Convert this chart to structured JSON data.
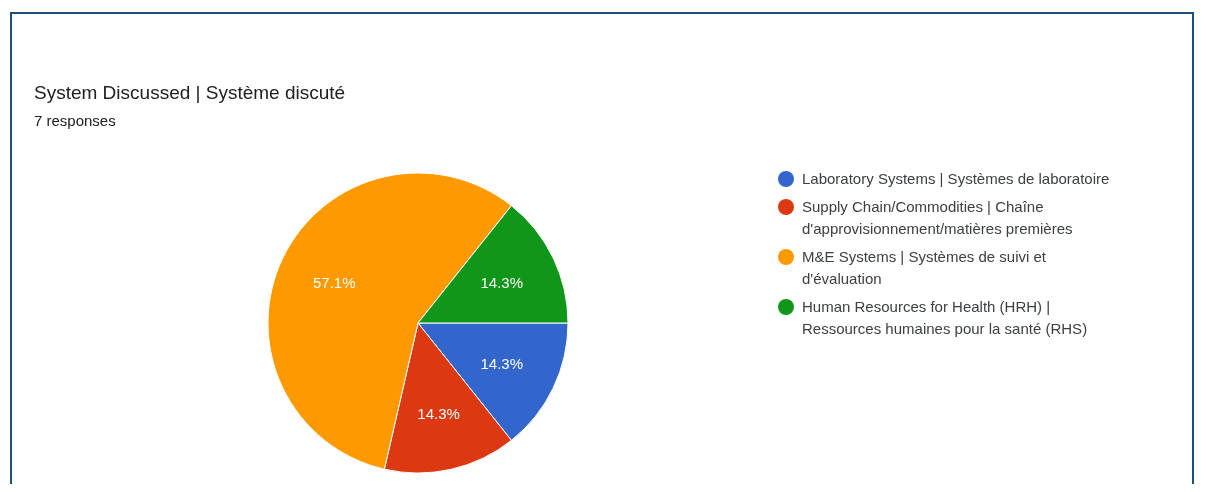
{
  "chart_data": {
    "type": "pie",
    "title": "System Discussed | Système discuté",
    "subtitle": "7 responses",
    "categories": [
      "Laboratory Systems | Systèmes de laboratoire",
      "Supply Chain/Commodities | Chaîne d'approvisionnement/matières premières",
      "M&E Systems | Systèmes de suivi et d'évaluation",
      "Human Resources for Health (HRH) | Ressources humaines pour la santé (RHS)"
    ],
    "values": [
      14.3,
      14.3,
      57.1,
      14.3
    ],
    "colors": [
      "#3366cc",
      "#dc3912",
      "#ff9900",
      "#109618"
    ],
    "value_labels": [
      "14.3%",
      "14.3%",
      "57.1%",
      "14.3%"
    ],
    "legend": "right"
  }
}
